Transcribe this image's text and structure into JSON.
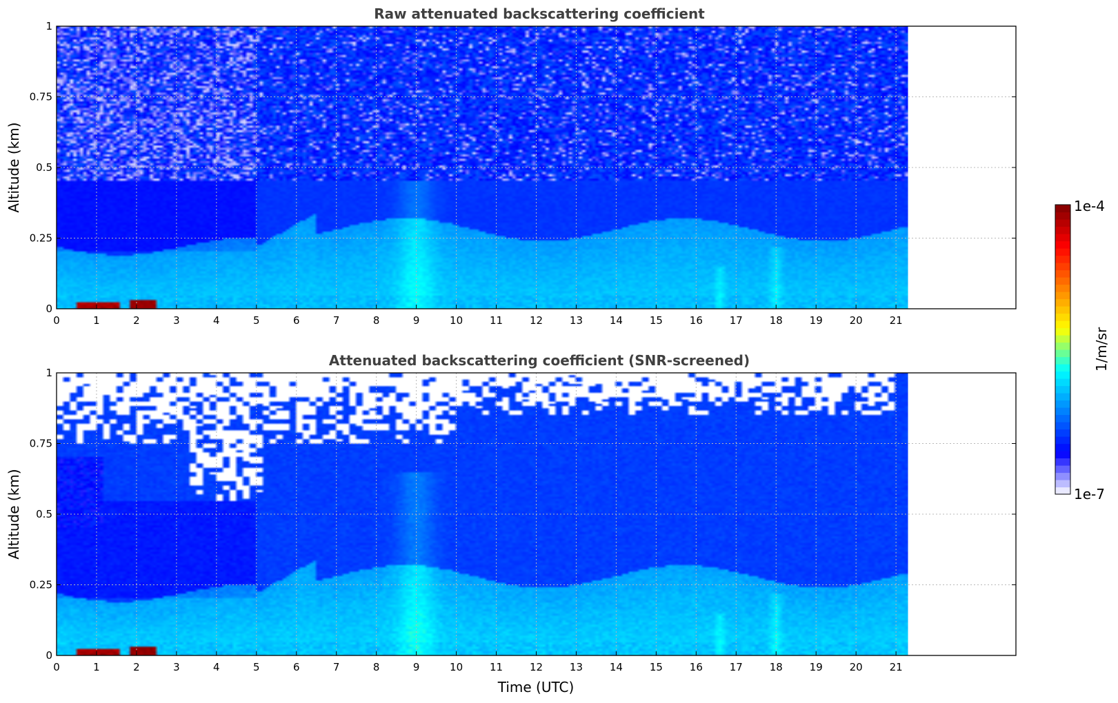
{
  "chart_data": [
    {
      "type": "heatmap",
      "title": "Raw attenuated backscattering coefficient",
      "xlabel": "",
      "ylabel": "Altitude (km)",
      "xlim": [
        0,
        24
      ],
      "ylim": [
        0,
        1
      ],
      "data_x_range": [
        0,
        21.3
      ],
      "x_ticks": [
        "0",
        "1",
        "2",
        "3",
        "4",
        "5",
        "6",
        "7",
        "8",
        "9",
        "10",
        "11",
        "12",
        "13",
        "14",
        "15",
        "16",
        "17",
        "18",
        "19",
        "20",
        "21"
      ],
      "y_ticks": [
        "0",
        "0.25",
        "0.5",
        "0.75",
        "1"
      ],
      "grid": true,
      "noise_fill_above_km": 0.5,
      "features": [
        {
          "label": "surface layer",
          "x": [
            0,
            21.3
          ],
          "y": [
            0,
            0.05
          ],
          "level": "high"
        },
        {
          "label": "strong near-surface echo",
          "x": [
            0.5,
            1.6
          ],
          "y": [
            0,
            0.02
          ],
          "level": "max"
        },
        {
          "label": "strong near-surface echo",
          "x": [
            1.8,
            2.5
          ],
          "y": [
            0,
            0.03
          ],
          "level": "max"
        },
        {
          "label": "boundary layer growth",
          "x": [
            5,
            21
          ],
          "y": [
            0,
            0.32
          ],
          "level": "medium"
        },
        {
          "label": "plume",
          "x": [
            8.5,
            9.5
          ],
          "y": [
            0,
            0.65
          ],
          "level": "medium"
        }
      ]
    },
    {
      "type": "heatmap",
      "title": "Attenuated backscattering coefficient (SNR-screened)",
      "xlabel": "Time (UTC)",
      "ylabel": "Altitude (km)",
      "xlim": [
        0,
        24
      ],
      "ylim": [
        0,
        1
      ],
      "data_x_range": [
        0,
        21.3
      ],
      "x_ticks": [
        "0",
        "1",
        "2",
        "3",
        "4",
        "5",
        "6",
        "7",
        "8",
        "9",
        "10",
        "11",
        "12",
        "13",
        "14",
        "15",
        "16",
        "17",
        "18",
        "19",
        "20",
        "21"
      ],
      "y_ticks": [
        "0",
        "0.25",
        "0.5",
        "0.75",
        "1"
      ],
      "grid": true,
      "screened_regions": [
        {
          "x": [
            0,
            10
          ],
          "y": [
            0.75,
            1
          ]
        },
        {
          "x": [
            3.3,
            5.2
          ],
          "y": [
            0.55,
            0.8
          ]
        },
        {
          "x": [
            10,
            21
          ],
          "y": [
            0.85,
            1
          ]
        }
      ]
    }
  ],
  "colorbar": {
    "label": "1/m/sr",
    "max_label": "1e-4",
    "min_label": "1e-7",
    "colormap": [
      "#ffffff",
      "#0000ff",
      "#0080ff",
      "#00ffff",
      "#ffff00",
      "#ff8000",
      "#ff0000",
      "#800000"
    ],
    "scale": "log"
  }
}
